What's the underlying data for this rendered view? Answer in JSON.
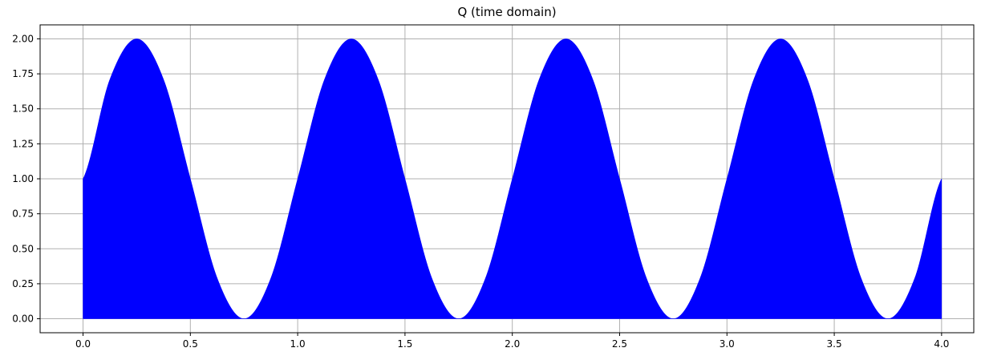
{
  "chart_data": {
    "type": "area",
    "title": "Q (time domain)",
    "xlabel": "",
    "ylabel": "",
    "xlim": [
      -0.2,
      4.15
    ],
    "ylim": [
      -0.1,
      2.1
    ],
    "x_ticks": [
      0.0,
      0.5,
      1.0,
      1.5,
      2.0,
      2.5,
      3.0,
      3.5,
      4.0
    ],
    "x_tick_labels": [
      "0.0",
      "0.5",
      "1.0",
      "1.5",
      "2.0",
      "2.5",
      "3.0",
      "3.5",
      "4.0"
    ],
    "y_ticks": [
      0.0,
      0.25,
      0.5,
      0.75,
      1.0,
      1.25,
      1.5,
      1.75,
      2.0
    ],
    "y_tick_labels": [
      "0.00",
      "0.25",
      "0.50",
      "0.75",
      "1.00",
      "1.25",
      "1.50",
      "1.75",
      "2.00"
    ],
    "grid": true,
    "fill_baseline": 0.0,
    "series": [
      {
        "fill_color": "#0000ff",
        "x": [
          0.0,
          0.125,
          0.25,
          0.375,
          0.5,
          0.625,
          0.75,
          0.875,
          1.0,
          1.125,
          1.25,
          1.375,
          1.5,
          1.625,
          1.75,
          1.875,
          2.0,
          2.125,
          2.25,
          2.375,
          2.5,
          2.625,
          2.75,
          2.875,
          3.0,
          3.125,
          3.25,
          3.375,
          3.5,
          3.625,
          3.75,
          3.875,
          4.0
        ],
        "y": [
          1.0,
          1.71,
          2.0,
          1.71,
          1.0,
          0.29,
          0.0,
          0.29,
          1.0,
          1.71,
          2.0,
          1.71,
          1.0,
          0.29,
          0.0,
          0.29,
          1.0,
          1.71,
          2.0,
          1.71,
          1.0,
          0.29,
          0.0,
          0.29,
          1.0,
          1.71,
          2.0,
          1.71,
          1.0,
          0.29,
          0.0,
          0.29,
          1.0
        ]
      }
    ]
  }
}
